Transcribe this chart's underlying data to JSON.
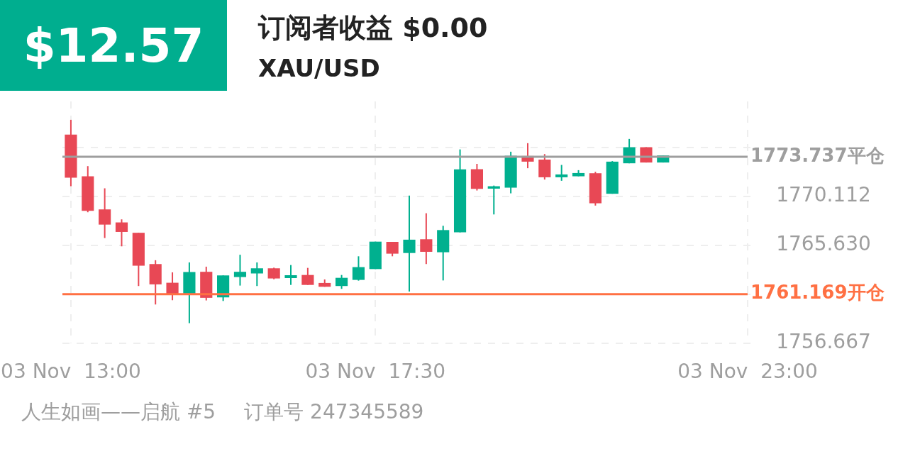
{
  "chart_data": {
    "type": "candlestick",
    "title": "订阅者收益 $0.00",
    "subtitle": "XAU/USD",
    "annotations": [
      "$12.57",
      "人生如画——启航 #5",
      "订单号 247345589"
    ],
    "categories": [
      "03 Nov  13:00",
      null,
      null,
      null,
      null,
      null,
      null,
      null,
      null,
      null,
      null,
      null,
      null,
      null,
      null,
      null,
      null,
      null,
      "03 Nov  17:30",
      null,
      null,
      null,
      null,
      null,
      null,
      null,
      null,
      null,
      null,
      null,
      null,
      null,
      null,
      null,
      null,
      null,
      null,
      null,
      null,
      null,
      "03 Nov  23:00"
    ],
    "ohlc": [
      [
        1775.76,
        1777.12,
        1771.04,
        1771.82
      ],
      [
        1771.95,
        1772.88,
        1768.66,
        1768.79
      ],
      [
        1768.92,
        1770.85,
        1766.3,
        1767.53
      ],
      [
        1767.73,
        1768.01,
        1765.54,
        1766.86
      ],
      [
        1766.78,
        1766.78,
        1761.91,
        1763.77
      ],
      [
        1763.92,
        1764.27,
        1760.22,
        1762.06
      ],
      [
        1762.21,
        1763.16,
        1760.61,
        1761.09
      ],
      [
        1761.22,
        1764.07,
        1758.51,
        1763.19
      ],
      [
        1763.21,
        1763.68,
        1760.59,
        1760.83
      ],
      [
        1760.87,
        1762.88,
        1760.54,
        1762.88
      ],
      [
        1762.73,
        1764.77,
        1761.95,
        1763.21
      ],
      [
        1763.06,
        1764.07,
        1761.91,
        1763.53
      ],
      [
        1763.53,
        1763.59,
        1762.53,
        1762.6
      ],
      [
        1762.64,
        1763.83,
        1762.01,
        1762.9
      ],
      [
        1762.92,
        1763.57,
        1762.01,
        1762.01
      ],
      [
        1762.19,
        1762.51,
        1761.84,
        1761.84
      ],
      [
        1761.91,
        1762.92,
        1761.65,
        1762.66
      ],
      [
        1762.47,
        1764.63,
        1762.4,
        1763.64
      ],
      [
        1763.46,
        1765.97,
        1763.46,
        1765.97
      ],
      [
        1765.95,
        1765.95,
        1764.63,
        1764.87
      ],
      [
        1764.93,
        1770.19,
        1761.41,
        1766.15
      ],
      [
        1766.19,
        1768.57,
        1763.92,
        1765.04
      ],
      [
        1765.0,
        1767.42,
        1762.42,
        1767.03
      ],
      [
        1766.82,
        1774.41,
        1766.82,
        1772.58
      ],
      [
        1772.6,
        1773.09,
        1770.65,
        1770.8
      ],
      [
        1770.82,
        1771.1,
        1768.46,
        1771.04
      ],
      [
        1770.91,
        1774.2,
        1770.39,
        1773.83
      ],
      [
        1773.81,
        1774.98,
        1772.69,
        1773.29
      ],
      [
        1773.48,
        1773.98,
        1771.65,
        1771.86
      ],
      [
        1771.86,
        1772.99,
        1771.54,
        1772.12
      ],
      [
        1771.95,
        1772.51,
        1771.95,
        1772.25
      ],
      [
        1772.23,
        1772.36,
        1769.27,
        1769.48
      ],
      [
        1770.35,
        1773.34,
        1770.35,
        1773.29
      ],
      [
        1773.14,
        1775.37,
        1773.14,
        1774.61
      ],
      [
        1774.61,
        1774.61,
        1773.21,
        1773.21
      ],
      [
        1773.21,
        1773.86,
        1773.21,
        1773.86
      ],
      null,
      null,
      null,
      null,
      null
    ],
    "colors": [
      "#e84855",
      "#e84855",
      "#e84855",
      "#e84855",
      "#e84855",
      "#e84855",
      "#e84855",
      "#00b08f",
      "#e84855",
      "#00b08f",
      "#00b08f",
      "#00b08f",
      "#e84855",
      "#00b08f",
      "#e84855",
      "#e84855",
      "#00b08f",
      "#00b08f",
      "#00b08f",
      "#e84855",
      "#00b08f",
      "#e84855",
      "#00b08f",
      "#00b08f",
      "#e84855",
      "#00b08f",
      "#00b08f",
      "#e84855",
      "#e84855",
      "#00b08f",
      "#00b08f",
      "#e84855",
      "#00b08f",
      "#00b08f",
      "#e84855",
      "#00b08f",
      null,
      null,
      null,
      null,
      null
    ],
    "ylim": [
      1756.667,
      1778.8
    ],
    "yticks": [
      {
        "value": 1756.667,
        "label": "1756.667"
      },
      {
        "value": 1761.149,
        "label": null
      },
      {
        "value": 1765.63,
        "label": "1765.630"
      },
      {
        "value": 1770.112,
        "label": "1770.112"
      },
      {
        "value": 1774.594,
        "label": null
      }
    ],
    "grid": true,
    "ref_lines": [
      {
        "axis": "y",
        "value": 1773.737,
        "label": "1773.737平仓",
        "color": "#9e9e9e"
      },
      {
        "axis": "y",
        "value": 1761.169,
        "label": "1761.169开仓",
        "color": "#ff7043"
      }
    ]
  }
}
